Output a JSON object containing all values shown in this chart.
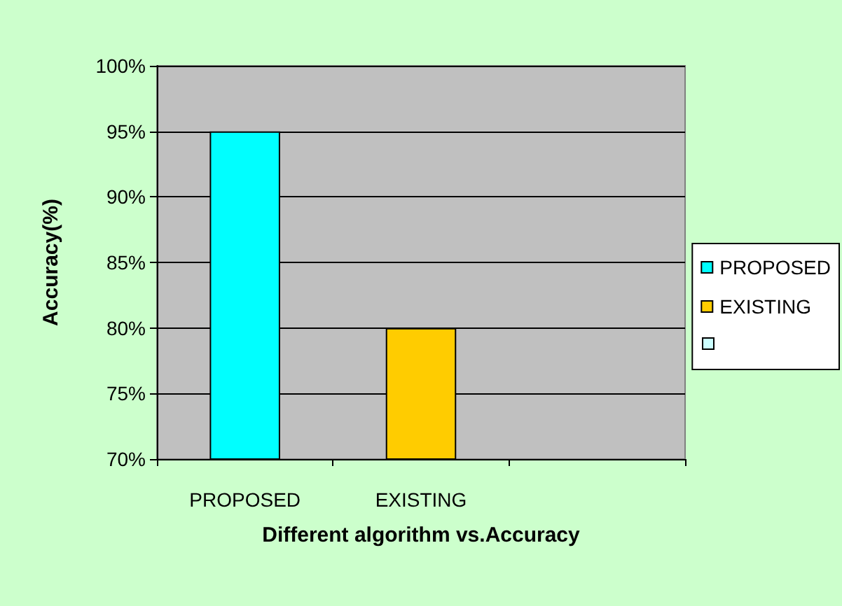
{
  "chart_data": {
    "type": "bar",
    "xlabel": "Different algorithm vs.Accuracy",
    "ylabel": "Accuracy(%)",
    "categories": [
      "PROPOSED",
      "EXISTING",
      null
    ],
    "series": [
      {
        "name": "PROPOSED",
        "color": "#00ffff",
        "values": [
          95,
          null,
          null
        ]
      },
      {
        "name": "EXISTING",
        "color": "#ffcc00",
        "values": [
          null,
          80,
          null
        ]
      }
    ],
    "ylim": [
      70,
      100
    ],
    "yticks": [
      {
        "value": 70,
        "label": "70%"
      },
      {
        "value": 75,
        "label": "75%"
      },
      {
        "value": 80,
        "label": "80%"
      },
      {
        "value": 85,
        "label": "85%"
      },
      {
        "value": 90,
        "label": "90%"
      },
      {
        "value": 95,
        "label": "95%"
      },
      {
        "value": 100,
        "label": "100%"
      }
    ],
    "grid": "y",
    "legend": "right"
  }
}
